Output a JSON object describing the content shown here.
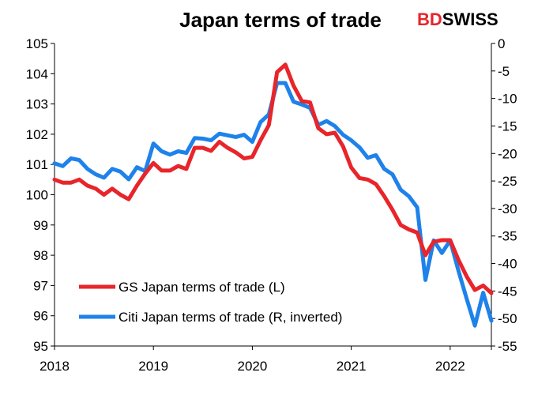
{
  "chart_data": {
    "type": "line",
    "title": "Japan terms of trade",
    "logo": {
      "text_a": "BD",
      "text_b": "SWISS",
      "color_a": "#e8252a",
      "color_b": "#000000"
    },
    "x_ticks": [
      "2018",
      "2019",
      "2020",
      "2021",
      "2022"
    ],
    "xlim": [
      "2018-01",
      "2022-06"
    ],
    "y_left": {
      "ticks": [
        105,
        104,
        103,
        102,
        101,
        100,
        99,
        98,
        97,
        96,
        95
      ],
      "ylim": [
        95,
        105
      ]
    },
    "y_right": {
      "ticks": [
        0,
        -5,
        -10,
        -15,
        -20,
        -25,
        -30,
        -35,
        -40,
        -45,
        -50,
        -55
      ],
      "ylim": [
        -55,
        0
      ],
      "inverted": true
    },
    "legend_placement": "bottom-left",
    "grid": false,
    "series": [
      {
        "name": "GS Japan terms of trade (L)",
        "axis": "left",
        "color": "#e8252a",
        "x": [
          "2018-01",
          "2018-02",
          "2018-03",
          "2018-04",
          "2018-05",
          "2018-06",
          "2018-07",
          "2018-08",
          "2018-09",
          "2018-10",
          "2018-11",
          "2018-12",
          "2019-01",
          "2019-02",
          "2019-03",
          "2019-04",
          "2019-05",
          "2019-06",
          "2019-07",
          "2019-08",
          "2019-09",
          "2019-10",
          "2019-11",
          "2019-12",
          "2020-01",
          "2020-02",
          "2020-03",
          "2020-04",
          "2020-05",
          "2020-06",
          "2020-07",
          "2020-08",
          "2020-09",
          "2020-10",
          "2020-11",
          "2020-12",
          "2021-01",
          "2021-02",
          "2021-03",
          "2021-04",
          "2021-05",
          "2021-06",
          "2021-07",
          "2021-08",
          "2021-09",
          "2021-10",
          "2021-11",
          "2021-12",
          "2022-01",
          "2022-02",
          "2022-03",
          "2022-04",
          "2022-05",
          "2022-06"
        ],
        "values": [
          100.5,
          100.4,
          100.4,
          100.5,
          100.3,
          100.2,
          100.0,
          100.2,
          100.0,
          99.85,
          100.3,
          100.7,
          101.05,
          100.8,
          100.8,
          100.95,
          100.85,
          101.55,
          101.55,
          101.45,
          101.75,
          101.55,
          101.4,
          101.2,
          101.25,
          101.8,
          102.3,
          104.05,
          104.3,
          103.6,
          103.1,
          103.05,
          102.2,
          102.0,
          102.05,
          101.6,
          100.9,
          100.55,
          100.5,
          100.35,
          99.95,
          99.5,
          99.0,
          98.85,
          98.75,
          98.0,
          98.45,
          98.5,
          98.5,
          97.85,
          97.3,
          96.85,
          97.0,
          96.75
        ]
      },
      {
        "name": "Citi Japan terms of trade (R, inverted)",
        "axis": "right",
        "color": "#1e82ea",
        "x": [
          "2018-01",
          "2018-02",
          "2018-03",
          "2018-04",
          "2018-05",
          "2018-06",
          "2018-07",
          "2018-08",
          "2018-09",
          "2018-10",
          "2018-11",
          "2018-12",
          "2019-01",
          "2019-02",
          "2019-03",
          "2019-04",
          "2019-05",
          "2019-06",
          "2019-07",
          "2019-08",
          "2019-09",
          "2019-10",
          "2019-11",
          "2019-12",
          "2020-01",
          "2020-02",
          "2020-03",
          "2020-04",
          "2020-05",
          "2020-06",
          "2020-07",
          "2020-08",
          "2020-09",
          "2020-10",
          "2020-11",
          "2020-12",
          "2021-01",
          "2021-02",
          "2021-03",
          "2021-04",
          "2021-05",
          "2021-06",
          "2021-07",
          "2021-08",
          "2021-09",
          "2021-10",
          "2021-11",
          "2021-12",
          "2022-01",
          "2022-02",
          "2022-03",
          "2022-04",
          "2022-05",
          "2022-06"
        ],
        "values": [
          -21.8,
          -22.3,
          -20.9,
          -21.2,
          -22.8,
          -23.8,
          -24.4,
          -22.8,
          -23.3,
          -24.7,
          -22.5,
          -23.2,
          -18.2,
          -19.6,
          -20.2,
          -19.6,
          -19.9,
          -17.2,
          -17.3,
          -17.6,
          -16.4,
          -16.7,
          -17.0,
          -16.6,
          -17.9,
          -14.3,
          -12.9,
          -7.2,
          -7.2,
          -10.6,
          -11.1,
          -11.7,
          -14.8,
          -14.1,
          -15.0,
          -16.6,
          -17.6,
          -18.9,
          -20.8,
          -20.3,
          -22.8,
          -23.8,
          -26.6,
          -27.8,
          -29.8,
          -43.0,
          -35.8,
          -38.1,
          -35.8,
          -41.3,
          -46.4,
          -51.3,
          -45.3,
          -50.4
        ]
      }
    ]
  }
}
